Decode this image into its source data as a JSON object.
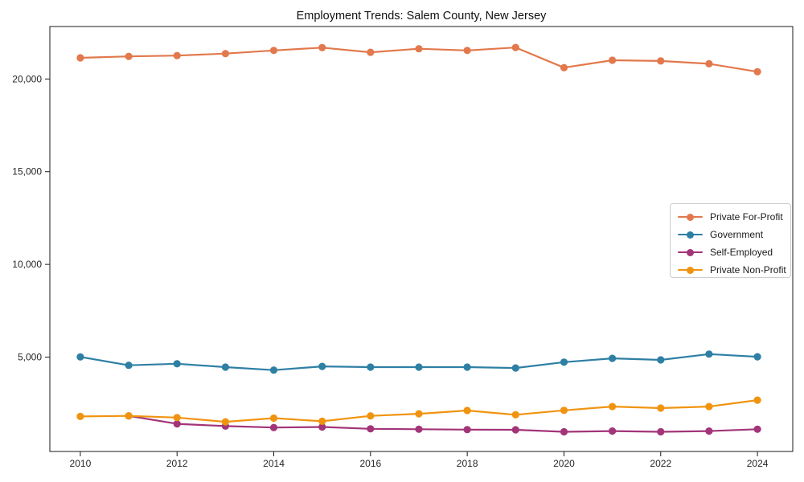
{
  "figure": {
    "background": "#ffffff",
    "spine_color": "#1a1a1a",
    "tick_label_color": "#262626"
  },
  "chart_data": {
    "type": "line",
    "title": "Employment Trends: Salem County, New Jersey",
    "xlabel": "",
    "ylabel": "",
    "grid": false,
    "legend_position": "center-right",
    "x": [
      2010,
      2011,
      2012,
      2013,
      2014,
      2015,
      2016,
      2017,
      2018,
      2019,
      2020,
      2021,
      2022,
      2023,
      2024
    ],
    "xlim": [
      2009.37,
      2024.73
    ],
    "ylim": [
      -90,
      22830
    ],
    "x_ticks": [
      2010,
      2012,
      2014,
      2016,
      2018,
      2020,
      2022,
      2024
    ],
    "x_tick_labels": [
      "2010",
      "2012",
      "2014",
      "2016",
      "2018",
      "2020",
      "2022",
      "2024"
    ],
    "y_ticks": [
      5000,
      10000,
      15000,
      20000
    ],
    "y_tick_labels": [
      "5,000",
      "10,000",
      "15,000",
      "20,000"
    ],
    "series": [
      {
        "name": "Private For-Profit",
        "color": "#e2784c",
        "values": [
          21140,
          21220,
          21260,
          21370,
          21540,
          21690,
          21440,
          21630,
          21540,
          21700,
          20610,
          21010,
          20970,
          20820,
          20390
        ]
      },
      {
        "name": "Government",
        "color": "#2e7fa4",
        "values": [
          5010,
          4560,
          4640,
          4460,
          4300,
          4500,
          4460,
          4460,
          4460,
          4410,
          4730,
          4930,
          4850,
          5160,
          5020
        ]
      },
      {
        "name": "Self-Employed",
        "color": "#a23478",
        "values": [
          null,
          1830,
          1400,
          1280,
          1200,
          1230,
          1130,
          1110,
          1090,
          1080,
          970,
          1010,
          970,
          1010,
          1110
        ]
      },
      {
        "name": "Private Non-Profit",
        "color": "#f0940f",
        "values": [
          1800,
          1830,
          1740,
          1510,
          1710,
          1540,
          1830,
          1940,
          2120,
          1890,
          2130,
          2330,
          2250,
          2330,
          2680
        ]
      }
    ]
  }
}
